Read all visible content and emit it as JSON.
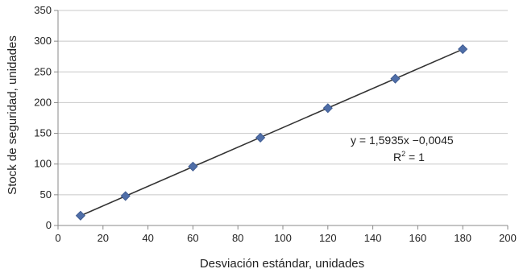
{
  "chart_data": {
    "type": "scatter",
    "xlabel": "Desviación estándar, unidades",
    "ylabel": "Stock de seguridad, unidades",
    "xlim": [
      0,
      200
    ],
    "ylim": [
      0,
      350
    ],
    "xticks": [
      0,
      20,
      40,
      60,
      80,
      100,
      120,
      140,
      160,
      180,
      200
    ],
    "yticks": [
      0,
      50,
      100,
      150,
      200,
      250,
      300,
      350
    ],
    "grid": "horizontal",
    "series": [
      {
        "x": [
          10,
          30,
          60,
          90,
          120,
          150,
          180
        ],
        "y": [
          16,
          48,
          96,
          143,
          191,
          239,
          287
        ],
        "marker": "diamond",
        "color": "#4f6ea8"
      }
    ],
    "trendline": {
      "slope": 1.5935,
      "intercept": -0.0045,
      "x_range": [
        10,
        180
      ],
      "color": "#333333"
    },
    "annotations": {
      "equation": "y = 1,5935x  −0,0045",
      "r2_prefix": "R",
      "r2_sup": "2",
      "r2_suffix": " = 1"
    }
  }
}
